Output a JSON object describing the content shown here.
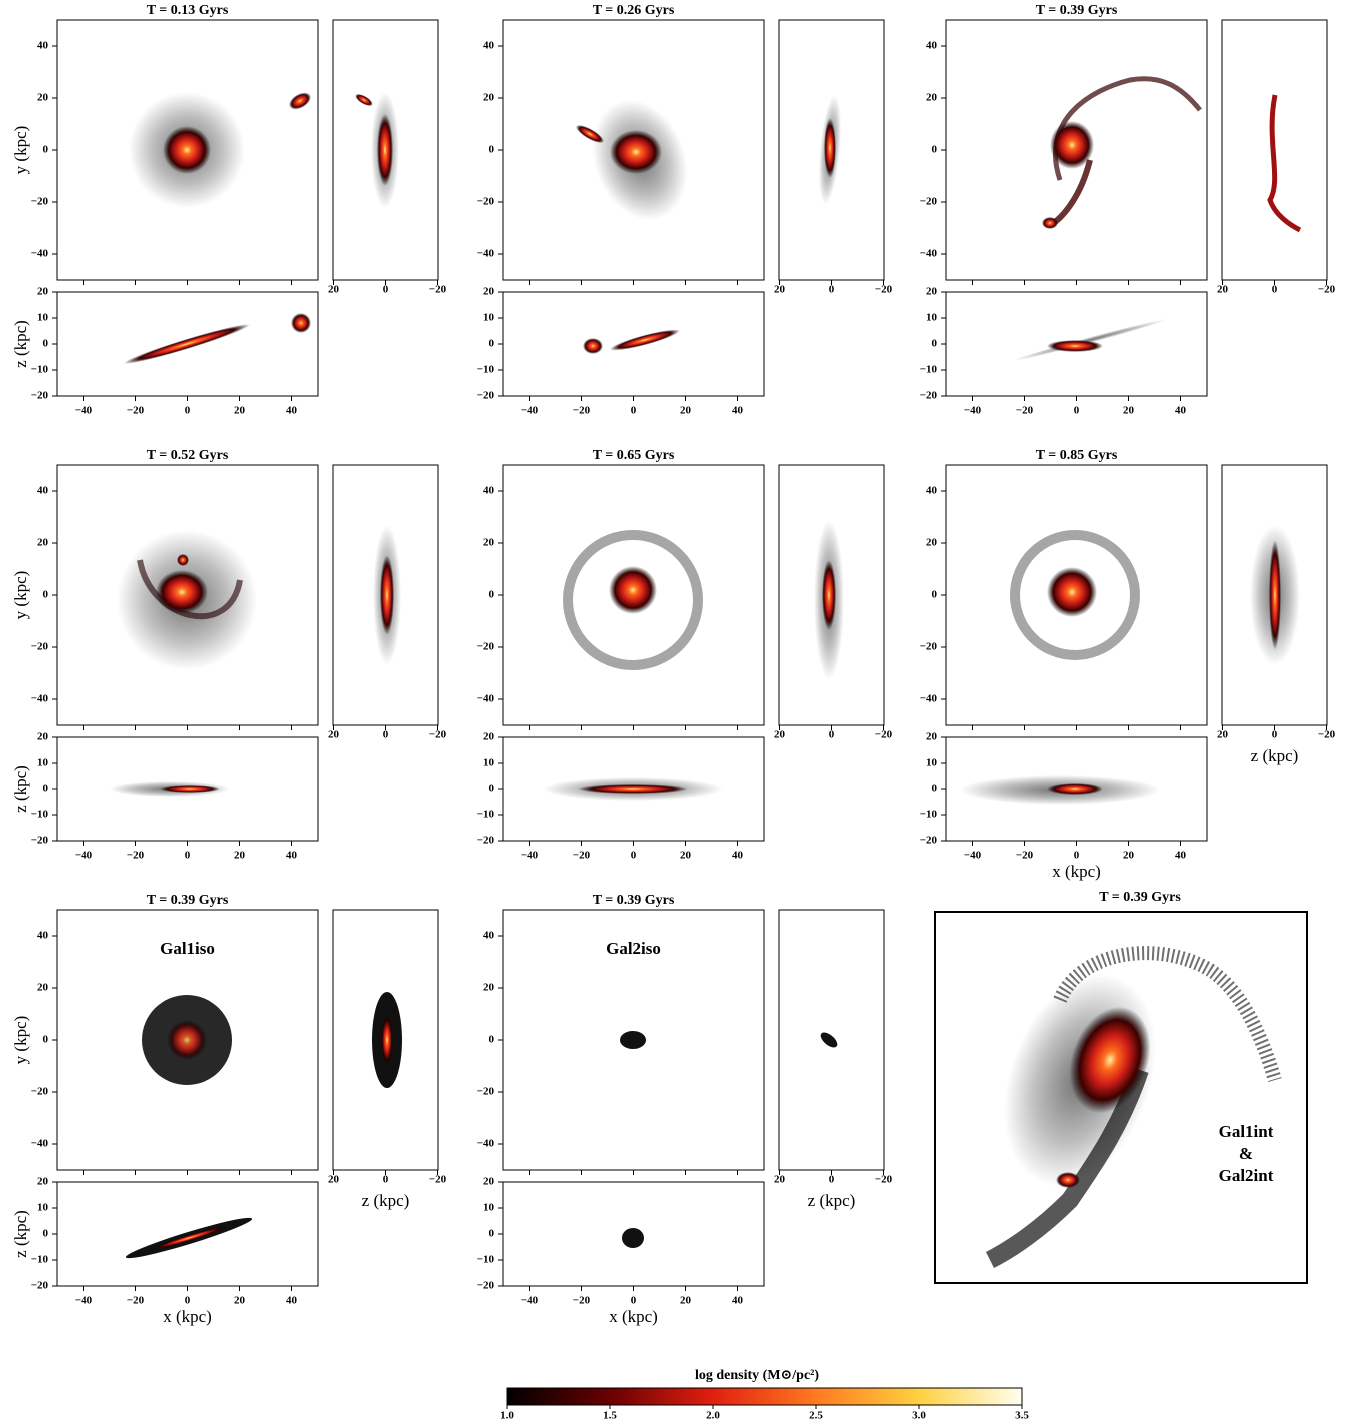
{
  "panels": [
    {
      "title": "T = 0.13 Gyrs"
    },
    {
      "title": "T = 0.26 Gyrs"
    },
    {
      "title": "T = 0.39 Gyrs"
    },
    {
      "title": "T = 0.52 Gyrs"
    },
    {
      "title": "T = 0.65 Gyrs"
    },
    {
      "title": "T = 0.85 Gyrs"
    },
    {
      "title": "T = 0.39 Gyrs",
      "label": "Gal1iso"
    },
    {
      "title": "T = 0.39 Gyrs",
      "label": "Gal2iso"
    },
    {
      "title": "T = 0.39 Gyrs",
      "label_lines": [
        "Gal1int",
        "&",
        "Gal2int"
      ]
    }
  ],
  "axis_labels": {
    "x": "x (kpc)",
    "y": "y (kpc)",
    "z": "z (kpc)"
  },
  "ticks": {
    "xy_y": [
      "40",
      "20",
      "0",
      "−20",
      "−40"
    ],
    "xz_x": [
      "−40",
      "−20",
      "0",
      "20",
      "40"
    ],
    "xz_y": [
      "20",
      "10",
      "0",
      "−10",
      "−20"
    ],
    "yz_x": [
      "20",
      "0",
      "−20"
    ]
  },
  "colorbar": {
    "label": "log density (M⊙/pc²)",
    "ticks": [
      "1.0",
      "1.5",
      "2.0",
      "2.5",
      "3.0",
      "3.5"
    ]
  }
}
